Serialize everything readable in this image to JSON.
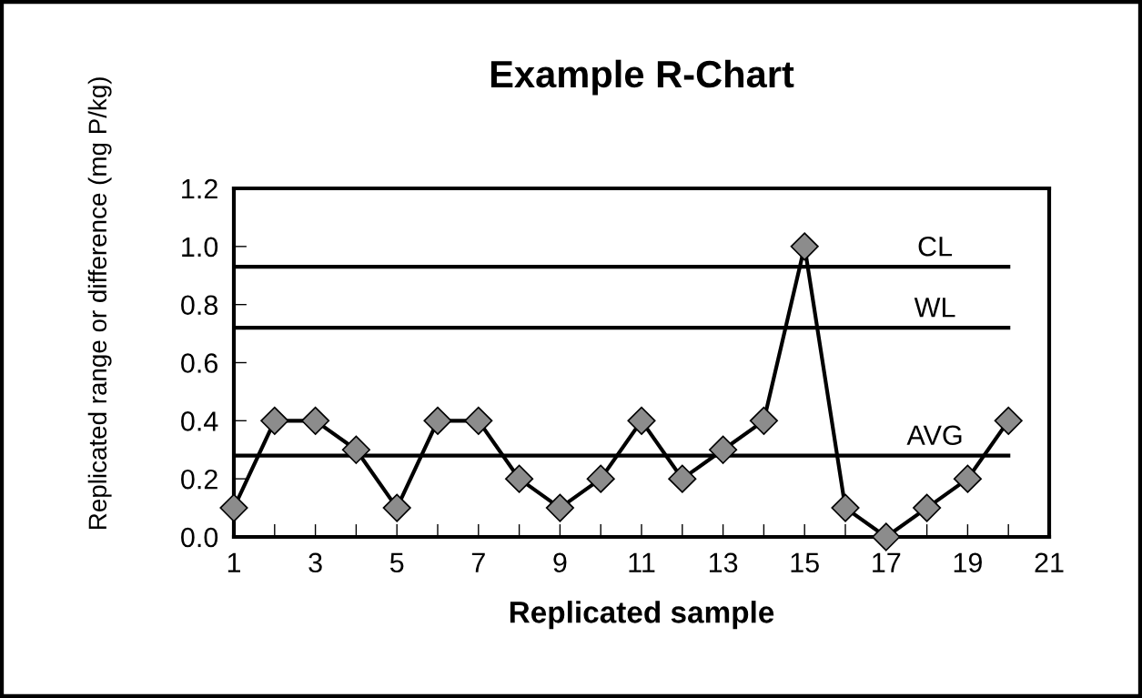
{
  "chart_data": {
    "type": "line",
    "title": "Example R-Chart",
    "xlabel": "Replicated sample",
    "ylabel": "Replicated range or difference (mg P/kg)",
    "x": [
      1,
      2,
      3,
      4,
      5,
      6,
      7,
      8,
      9,
      10,
      11,
      12,
      13,
      14,
      15,
      16,
      17,
      18,
      19,
      20
    ],
    "series": [
      {
        "color": "#000000",
        "values": [
          0.1,
          0.4,
          0.4,
          0.3,
          0.1,
          0.4,
          0.4,
          0.2,
          0.1,
          0.2,
          0.4,
          0.2,
          0.3,
          0.4,
          1.0,
          0.1,
          0.0,
          0.1,
          0.2,
          0.4
        ],
        "marker": "diamond"
      }
    ],
    "ref_lines": [
      {
        "axis": "y",
        "value": 0.93,
        "label": "CL",
        "color": "#000000"
      },
      {
        "axis": "y",
        "value": 0.72,
        "label": "WL",
        "color": "#000000"
      },
      {
        "axis": "y",
        "value": 0.28,
        "label": "AVG",
        "color": "#000000"
      }
    ],
    "xlim": [
      1,
      21
    ],
    "xticks": [
      1,
      {
        "value": 2,
        "label": null
      },
      3,
      {
        "value": 4,
        "label": null
      },
      5,
      {
        "value": 6,
        "label": null
      },
      7,
      {
        "value": 8,
        "label": null
      },
      9,
      {
        "value": 10,
        "label": null
      },
      11,
      {
        "value": 12,
        "label": null
      },
      13,
      {
        "value": 14,
        "label": null
      },
      15,
      {
        "value": 16,
        "label": null
      },
      17,
      {
        "value": 18,
        "label": null
      },
      19,
      {
        "value": 20,
        "label": null
      },
      21
    ],
    "ylim": [
      0,
      1.2
    ],
    "yticks": [
      {
        "value": 0,
        "label": "0.0"
      },
      {
        "value": 0.2,
        "label": "0.2"
      },
      {
        "value": 0.4,
        "label": "0.4"
      },
      {
        "value": 0.6,
        "label": "0.6"
      },
      {
        "value": 0.8,
        "label": "0.8"
      },
      {
        "value": 1.0,
        "label": "1.0"
      },
      {
        "value": 1.2,
        "label": "1.2"
      }
    ],
    "grid": false,
    "legend": false
  }
}
